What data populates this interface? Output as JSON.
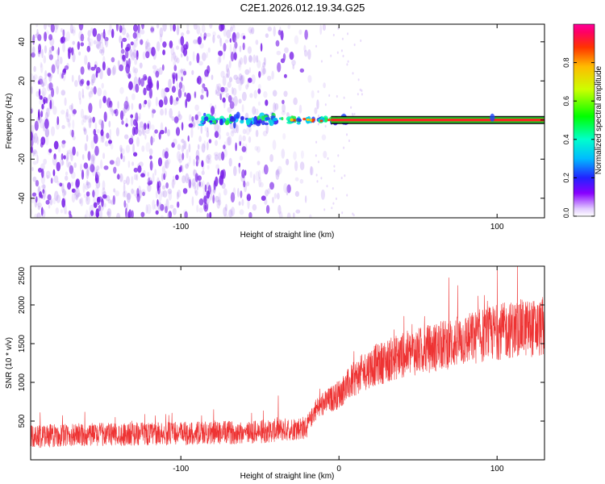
{
  "title": "C2E1.2026.012.19.34.G25",
  "colors": {
    "line": "#ee3333",
    "core": "#ff2222",
    "core_edge": "#22cc22",
    "scatter": "#7a22e8"
  },
  "chart_data": [
    {
      "type": "heatmap",
      "name": "spectrogram",
      "xlabel": "Height of straight line (km)",
      "ylabel": "Frequency (Hz)",
      "xlim": [
        -195,
        130
      ],
      "ylim": [
        -50,
        49
      ],
      "xticks": [
        -100,
        0,
        100
      ],
      "xtick_labels": [
        "-100",
        "",
        "100"
      ],
      "yticks": [
        40,
        20,
        0,
        -20,
        -40
      ],
      "ytick_labels": [
        "40",
        "20",
        "0",
        "-20",
        "-40"
      ],
      "colorbar": {
        "label": "Normalized spectral amplitude",
        "range": [
          0,
          1
        ],
        "ticks": [
          0.0,
          0.2,
          0.4,
          0.6,
          0.8
        ],
        "tick_labels": [
          "0.0",
          "0.2",
          "0.4",
          "0.6",
          "0.8"
        ]
      },
      "features": {
        "noise_dense_until_km": -80,
        "noise_fade_until_km": -15,
        "signal_line_freq_hz": 0,
        "signal_line_start_km": -5,
        "signal_line_end_km": 130,
        "signal_fragments_start_km": -88
      }
    },
    {
      "type": "line",
      "name": "snr",
      "xlabel": "Height of straight line (km)",
      "ylabel": "SNR (10 * v/v)",
      "xlim": [
        -195,
        130
      ],
      "ylim": [
        0,
        2500
      ],
      "xticks": [
        -100,
        0,
        100
      ],
      "xtick_labels": [
        "-100",
        "0",
        "100"
      ],
      "yticks": [
        500,
        1000,
        1500,
        2000,
        2500
      ],
      "ytick_labels": [
        "500",
        "1000",
        "1500",
        "2000",
        "2500"
      ],
      "trend": {
        "x": [
          -195,
          -150,
          -100,
          -50,
          -20,
          -15,
          0,
          10,
          20,
          40,
          60,
          80,
          100,
          115,
          130
        ],
        "y": [
          300,
          330,
          340,
          360,
          420,
          650,
          850,
          1050,
          1200,
          1350,
          1450,
          1550,
          1650,
          1700,
          1700
        ]
      }
    }
  ]
}
